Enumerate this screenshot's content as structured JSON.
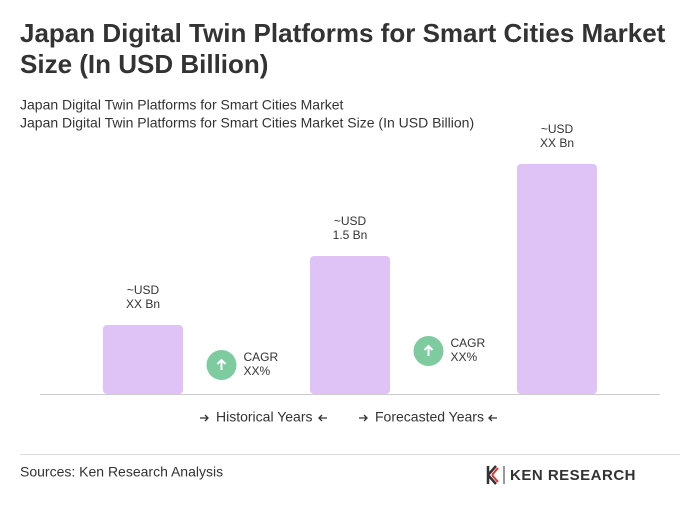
{
  "chart_data": {
    "type": "bar",
    "title": "Japan Digital Twin Platforms for Smart Cities Market Size (In USD Billion)",
    "subtitle": [
      "Japan Digital Twin Platforms for Smart Cities Market",
      "Japan Digital Twin Platforms for Smart Cities Market Size (In USD Billion)"
    ],
    "values": [
      0.75,
      1.5,
      2.5
    ],
    "value_labels": [
      [
        "~USD",
        "XX Bn"
      ],
      [
        "~USD",
        "1.5 Bn"
      ],
      [
        "~USD",
        "XX Bn"
      ]
    ],
    "color": "#dfc3f7",
    "annotations": [
      {
        "label": "CAGR",
        "value": "XX%"
      },
      {
        "label": "CAGR",
        "value": "XX%"
      }
    ],
    "annotation_color": "#7fcba0",
    "legend": [
      "Historical Years",
      "Forecasted Years"
    ],
    "source": "Sources: Ken Research Analysis",
    "logo": "KEN RESEARCH"
  }
}
